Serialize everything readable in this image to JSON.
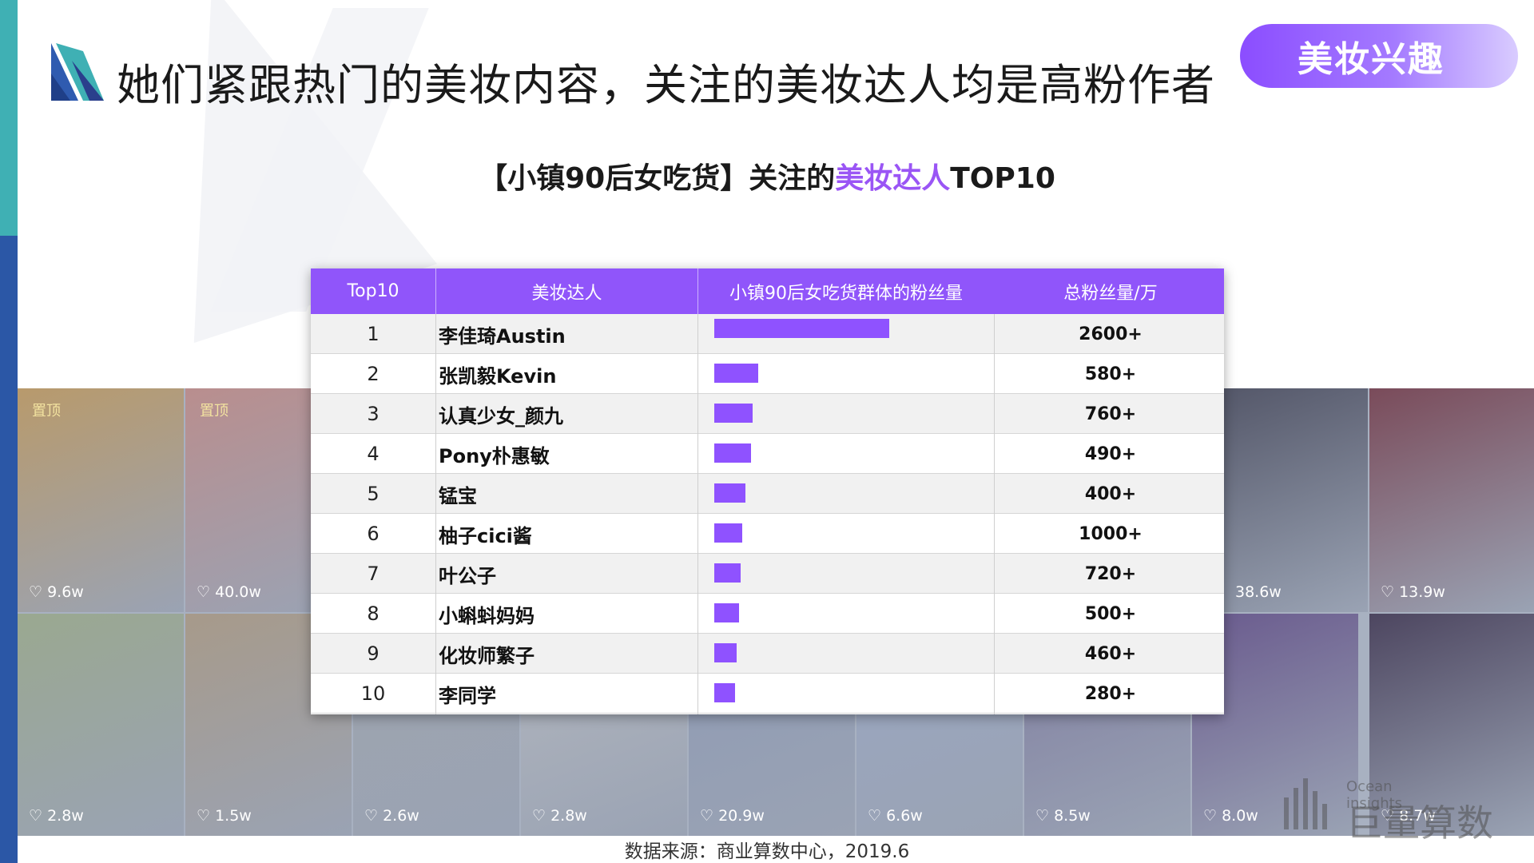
{
  "header": {
    "title": "她们紧跟热门的美妆内容，关注的美妆达人均是高粉作者",
    "tag": "美妆兴趣"
  },
  "subtitle": {
    "prefix": "【小镇90后女吃货】关注的",
    "highlight": "美妆达人",
    "suffix": "TOP10"
  },
  "table": {
    "columns": [
      "Top10",
      "美妆达人",
      "小镇90后女吃货群体的粉丝量",
      "总粉丝量/万"
    ],
    "rows": [
      {
        "rank": "1",
        "name": "李佳琦Austin",
        "bar": 1.0,
        "total": "2600+"
      },
      {
        "rank": "2",
        "name": "张凯毅Kevin",
        "bar": 0.25,
        "total": "580+"
      },
      {
        "rank": "3",
        "name": "认真少女_颜九",
        "bar": 0.22,
        "total": "760+"
      },
      {
        "rank": "4",
        "name": "Pony朴惠敏",
        "bar": 0.21,
        "total": "490+"
      },
      {
        "rank": "5",
        "name": "锰宝",
        "bar": 0.18,
        "total": "400+"
      },
      {
        "rank": "6",
        "name": "柚子cici酱",
        "bar": 0.16,
        "total": "1000+"
      },
      {
        "rank": "7",
        "name": "叶公子",
        "bar": 0.15,
        "total": "720+"
      },
      {
        "rank": "8",
        "name": "小蝌蚪妈妈",
        "bar": 0.14,
        "total": "500+"
      },
      {
        "rank": "9",
        "name": "化妆师繁子",
        "bar": 0.13,
        "total": "460+"
      },
      {
        "rank": "10",
        "name": "李同学",
        "bar": 0.12,
        "total": "280+"
      }
    ]
  },
  "background_tiles": [
    {
      "label": "♡ 9.6w",
      "pin": "置顶",
      "color": "#b89a6c"
    },
    {
      "label": "♡ 40.0w",
      "pin": "置顶",
      "color": "#b98e8e"
    },
    {
      "label": "♡ 2.8w",
      "pin": "",
      "color": "#9aa890"
    },
    {
      "label": "♡ 1.5w",
      "pin": "",
      "color": "#a79a8a"
    },
    {
      "label": "♡ 2.6w",
      "pin": "",
      "color": "#9ea4ad"
    },
    {
      "label": "♡ 2.8w",
      "pin": "",
      "color": "#b3b7be"
    },
    {
      "label": "♡ 20.9w",
      "pin": "",
      "color": "#8e9ab4"
    },
    {
      "label": "♡ 6.6w",
      "pin": "",
      "color": "#9aa7c2"
    },
    {
      "label": "♡ 8.5w",
      "pin": "",
      "color": "#7f7da0"
    },
    {
      "label": "♡ 8.0w",
      "pin": "",
      "color": "#6a5b8e"
    },
    {
      "label": "38.6w",
      "pin": "",
      "color": "#55586a"
    },
    {
      "label": "♡ 13.9w",
      "pin": "",
      "color": "#7a4b5a"
    },
    {
      "label": "♡ 8.7w",
      "pin": "",
      "color": "#4d4660"
    }
  ],
  "source": "数据来源：商业算数中心，2019.6",
  "brand": {
    "english": "Ocean insights",
    "chinese": "巨量算数"
  },
  "colors": {
    "accent": "#9055fa",
    "strip_top": "#3fb0b4",
    "strip_bottom": "#2b57a6"
  }
}
